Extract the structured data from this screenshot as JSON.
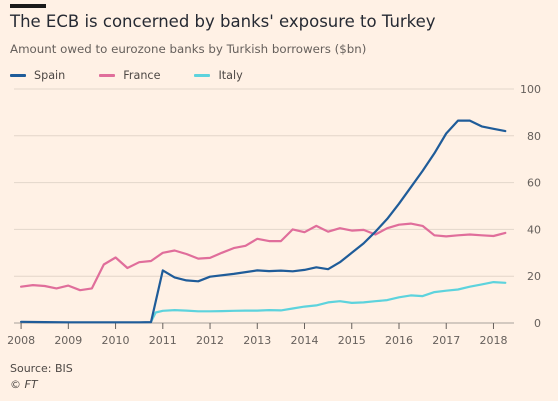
{
  "title": "The ECB is concerned by banks' exposure to Turkey",
  "subtitle": "Amount owed to eurozone banks by Turkish borrowers ($bn)",
  "source": "Source: BIS",
  "credit": "© FT",
  "chart_data": {
    "type": "line",
    "ylim": [
      0,
      100
    ],
    "xlim": [
      2007.85,
      2018.35
    ],
    "grid": true,
    "legend": "top-left",
    "y_ticks": [
      0,
      20,
      40,
      60,
      80,
      100
    ],
    "y_tick_labels": [
      "0",
      "20",
      "40",
      "60",
      "80",
      "100"
    ],
    "x_ticks": [
      2008,
      2009,
      2010,
      2011,
      2012,
      2013,
      2014,
      2015,
      2016,
      2017,
      2018
    ],
    "x_tick_labels": [
      "2008",
      "2009",
      "2010",
      "2011",
      "2012",
      "2013",
      "2014",
      "2015",
      "2016",
      "2017",
      "2018"
    ],
    "series": [
      {
        "name": "Spain",
        "color": "#1f5c99",
        "points": [
          [
            2008.0,
            0.5
          ],
          [
            2008.5,
            0.4
          ],
          [
            2009.0,
            0.3
          ],
          [
            2009.5,
            0.3
          ],
          [
            2010.0,
            0.3
          ],
          [
            2010.5,
            0.3
          ],
          [
            2010.75,
            0.4
          ],
          [
            2011.0,
            22.5
          ],
          [
            2011.25,
            19.5
          ],
          [
            2011.5,
            18.2
          ],
          [
            2011.75,
            17.8
          ],
          [
            2012.0,
            19.8
          ],
          [
            2012.5,
            21.0
          ],
          [
            2013.0,
            22.5
          ],
          [
            2013.25,
            22.2
          ],
          [
            2013.5,
            22.4
          ],
          [
            2013.75,
            22.1
          ],
          [
            2014.0,
            22.7
          ],
          [
            2014.25,
            23.8
          ],
          [
            2014.5,
            23.0
          ],
          [
            2014.75,
            26.0
          ],
          [
            2015.0,
            30.0
          ],
          [
            2015.25,
            34.0
          ],
          [
            2015.5,
            39.0
          ],
          [
            2015.75,
            44.5
          ],
          [
            2016.0,
            51.0
          ],
          [
            2016.25,
            58.0
          ],
          [
            2016.5,
            65.0
          ],
          [
            2016.75,
            72.5
          ],
          [
            2017.0,
            81.0
          ],
          [
            2017.25,
            86.5
          ],
          [
            2017.5,
            86.5
          ],
          [
            2017.75,
            84.0
          ],
          [
            2018.0,
            83.0
          ],
          [
            2018.25,
            82.0
          ]
        ]
      },
      {
        "name": "France",
        "color": "#e06e9b",
        "points": [
          [
            2008.0,
            15.5
          ],
          [
            2008.25,
            16.2
          ],
          [
            2008.5,
            15.8
          ],
          [
            2008.75,
            14.8
          ],
          [
            2009.0,
            16.0
          ],
          [
            2009.25,
            14.0
          ],
          [
            2009.5,
            14.8
          ],
          [
            2009.75,
            25.0
          ],
          [
            2010.0,
            28.0
          ],
          [
            2010.25,
            23.5
          ],
          [
            2010.5,
            26.0
          ],
          [
            2010.75,
            26.5
          ],
          [
            2011.0,
            30.0
          ],
          [
            2011.25,
            31.0
          ],
          [
            2011.5,
            29.5
          ],
          [
            2011.75,
            27.5
          ],
          [
            2012.0,
            27.8
          ],
          [
            2012.25,
            30.0
          ],
          [
            2012.5,
            32.0
          ],
          [
            2012.75,
            33.0
          ],
          [
            2013.0,
            36.0
          ],
          [
            2013.25,
            35.0
          ],
          [
            2013.5,
            35.0
          ],
          [
            2013.75,
            40.0
          ],
          [
            2014.0,
            38.8
          ],
          [
            2014.25,
            41.5
          ],
          [
            2014.5,
            39.0
          ],
          [
            2014.75,
            40.5
          ],
          [
            2015.0,
            39.5
          ],
          [
            2015.25,
            39.8
          ],
          [
            2015.5,
            37.8
          ],
          [
            2015.75,
            40.5
          ],
          [
            2016.0,
            42.0
          ],
          [
            2016.25,
            42.5
          ],
          [
            2016.5,
            41.5
          ],
          [
            2016.75,
            37.5
          ],
          [
            2017.0,
            37.0
          ],
          [
            2017.25,
            37.5
          ],
          [
            2017.5,
            37.8
          ],
          [
            2017.75,
            37.5
          ],
          [
            2018.0,
            37.2
          ],
          [
            2018.25,
            38.5
          ]
        ]
      },
      {
        "name": "Italy",
        "color": "#5dd3dd",
        "points": [
          [
            2010.75,
            0.5
          ],
          [
            2010.85,
            4.5
          ],
          [
            2011.0,
            5.2
          ],
          [
            2011.25,
            5.5
          ],
          [
            2011.5,
            5.3
          ],
          [
            2011.75,
            5.0
          ],
          [
            2012.0,
            5.0
          ],
          [
            2012.25,
            5.1
          ],
          [
            2012.5,
            5.2
          ],
          [
            2012.75,
            5.3
          ],
          [
            2013.0,
            5.3
          ],
          [
            2013.25,
            5.5
          ],
          [
            2013.5,
            5.4
          ],
          [
            2013.75,
            6.2
          ],
          [
            2014.0,
            7.0
          ],
          [
            2014.25,
            7.5
          ],
          [
            2014.5,
            8.8
          ],
          [
            2014.75,
            9.3
          ],
          [
            2015.0,
            8.6
          ],
          [
            2015.25,
            8.8
          ],
          [
            2015.5,
            9.3
          ],
          [
            2015.75,
            9.8
          ],
          [
            2016.0,
            11.0
          ],
          [
            2016.25,
            11.8
          ],
          [
            2016.5,
            11.5
          ],
          [
            2016.75,
            13.2
          ],
          [
            2017.0,
            13.8
          ],
          [
            2017.25,
            14.3
          ],
          [
            2017.5,
            15.5
          ],
          [
            2017.75,
            16.5
          ],
          [
            2018.0,
            17.5
          ],
          [
            2018.25,
            17.2
          ]
        ]
      }
    ]
  }
}
